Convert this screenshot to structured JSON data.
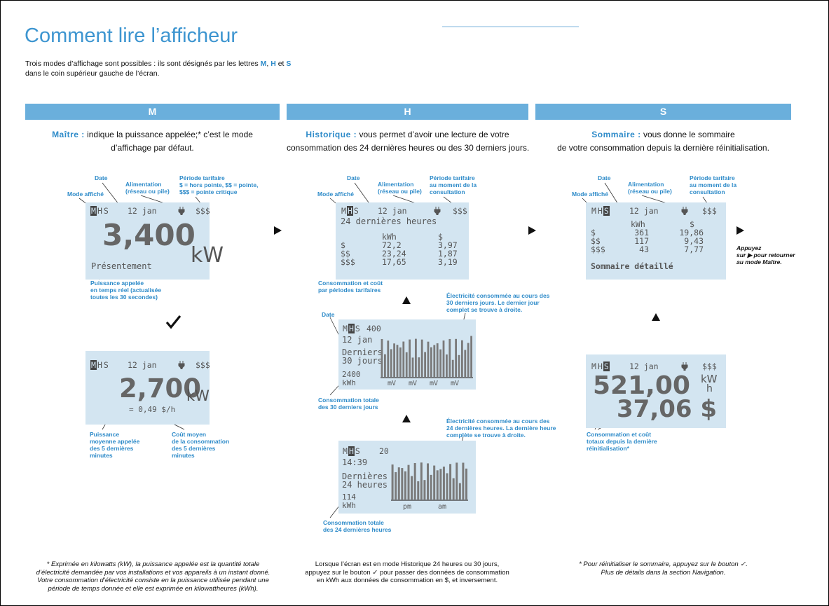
{
  "header": {
    "title": "Comment lire l’afficheur",
    "intro_1": "Trois modes d’affichage sont possibles : ils sont désignés par les lettres",
    "intro_m": "M",
    "intro_sep": ",",
    "intro_h": "H",
    "intro_and": "et",
    "intro_s": "S",
    "intro_2": "dans le coin supérieur gauche de l’écran."
  },
  "columns": [
    {
      "letter": "M",
      "term": "Maître :",
      "description": [
        "indique la puissance appelée;* c’est le mode",
        "d’affichage par défaut."
      ]
    },
    {
      "letter": "H",
      "term": "Historique :",
      "description": [
        "vous permet d’avoir une lecture de votre",
        "consommation des 24 dernières heures ou des 30 derniers jours."
      ]
    },
    {
      "letter": "S",
      "term": "Sommaire :",
      "description": [
        "vous donne le sommaire",
        "de votre consommation depuis la dernière réinitialisation."
      ]
    }
  ],
  "screens": [
    {
      "mode": [
        "M",
        "H",
        "S"
      ],
      "active": 0,
      "date": "12 jan",
      "tariff": "$$$",
      "value": "3,400",
      "unit": "kW",
      "caption": "Présentement"
    },
    {
      "mode": [
        "M",
        "H",
        "S"
      ],
      "active": 0,
      "date": "12 jan",
      "tariff": "$$$",
      "value": "2,700",
      "unit": "kW",
      "cost": "= 0,49 $/h"
    },
    {
      "mode": [
        "M",
        "H",
        "S"
      ],
      "active": 1,
      "date": "12 jan",
      "tariff": "$$$",
      "caption": "24 dernières heures",
      "table": {
        "header": [
          "kWh",
          "$"
        ],
        "rows": [
          [
            "$",
            "72,2",
            "3,97"
          ],
          [
            "$$",
            "23,24",
            "1,87"
          ],
          [
            "$$$",
            "17,65",
            "3,19"
          ]
        ]
      }
    },
    {
      "mode": [
        "M",
        "H",
        "S"
      ],
      "active": 1,
      "scale": "400",
      "date": "12 jan",
      "caption": [
        "Derniers",
        "30 jours"
      ],
      "total": "2400",
      "unit": "kWh",
      "axis": [
        "mV",
        "mV",
        "mV",
        "mV"
      ]
    },
    {
      "mode": [
        "M",
        "H",
        "S"
      ],
      "active": 1,
      "scale": "20",
      "time": "14:39",
      "caption": [
        "Dernières",
        "24 heures"
      ],
      "total": "114",
      "unit": "kWh",
      "axis": [
        "pm",
        "am"
      ]
    },
    {
      "mode": [
        "M",
        "H",
        "S"
      ],
      "active": 2,
      "date": "12 jan",
      "tariff": "$$$",
      "table": {
        "header": [
          "kWh",
          "$"
        ],
        "rows": [
          [
            "$",
            "361",
            "19,86"
          ],
          [
            "$$",
            "117",
            "9,43"
          ],
          [
            "$$$",
            "43",
            "7,77"
          ]
        ]
      },
      "caption": "Sommaire détaillé"
    },
    {
      "mode": [
        "M",
        "H",
        "S"
      ],
      "active": 2,
      "date": "12 jan",
      "tariff": "$$$",
      "energy": "521,00",
      "energy_unit": [
        "kW",
        "h"
      ],
      "cost": "37,06 $"
    }
  ],
  "annotations": [
    {
      "lines": [
        "Date"
      ]
    },
    {
      "lines": [
        "Alimentation",
        "(réseau ou pile)"
      ]
    },
    {
      "lines": [
        "Période tarifaire",
        "$ = hors pointe, $$ = pointe,",
        "$$$ = pointe critique"
      ]
    },
    {
      "lines": [
        "Mode affiché"
      ]
    },
    {
      "lines": [
        "Puissance appelée",
        "en temps réel (actualisée",
        "toutes les 30 secondes)"
      ]
    },
    {
      "lines": [
        "Puissance",
        "moyenne appelée",
        "des 5 dernières",
        "minutes"
      ]
    },
    {
      "lines": [
        "Coût moyen",
        "de la consommation",
        "des 5 dernières",
        "minutes"
      ]
    },
    {
      "lines": [
        "Date"
      ]
    },
    {
      "lines": [
        "Alimentation",
        "(réseau ou pile)"
      ]
    },
    {
      "lines": [
        "Période tarifaire",
        "au moment de la",
        "consultation"
      ]
    },
    {
      "lines": [
        "Mode affiché"
      ]
    },
    {
      "lines": [
        "Consommation et coût",
        "par périodes tarifaires"
      ]
    },
    {
      "lines": [
        "Électricité consommée au cours des",
        "30 derniers jours. Le dernier jour",
        "complet se trouve à droite."
      ]
    },
    {
      "lines": [
        "Date"
      ]
    },
    {
      "lines": [
        "Consommation totale",
        "des 30 derniers jours"
      ]
    },
    {
      "lines": [
        "Électricité consommée au cours des",
        "24 dernières heures. La dernière heure",
        "complète se trouve à droite."
      ]
    },
    {
      "lines": [
        "Consommation totale",
        "des 24 dernières heures"
      ]
    },
    {
      "lines": [
        "Date"
      ]
    },
    {
      "lines": [
        "Alimentation",
        "(réseau ou pile)"
      ]
    },
    {
      "lines": [
        "Période tarifaire",
        "au moment de la",
        "consultation"
      ]
    },
    {
      "lines": [
        "Mode affiché"
      ]
    },
    {
      "lines": [
        "Consommation et coût",
        "totaux depuis la dernière",
        "réinitialisation*"
      ]
    },
    {
      "lines": [
        "Appuyez",
        "sur ▶ pour retourner",
        "au mode Maître."
      ]
    }
  ],
  "footnotes": [
    {
      "lines": [
        "* Exprimée en kilowatts (kW), la puissance appelée est la quantité totale",
        "d’électricité demandée par vos installations et vos appareils à un instant donné.",
        "Votre consommation d’électricité consiste en la puissance utilisée pendant une",
        "période de temps donnée et elle est exprimée en kilowattheures (kWh)."
      ]
    },
    {
      "lines": [
        "Lorsque l’écran est en mode Historique 24 heures ou 30 jours,",
        "appuyez sur le bouton ✓ pour passer des données de consommation",
        "en kWh aux données de consommation en $, et inversement."
      ]
    },
    {
      "lines": [
        "* Pour réinitialiser le sommaire, appuyez sur le bouton ✓.",
        "Plus de détails dans la section Navigation."
      ]
    }
  ]
}
